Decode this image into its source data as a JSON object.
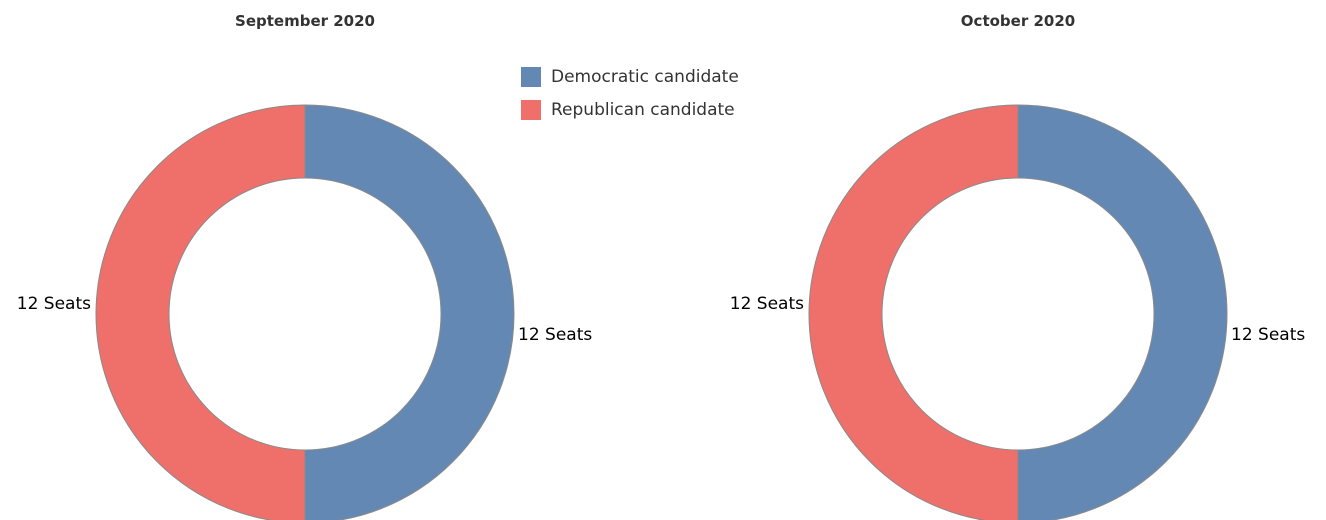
{
  "chart_data": [
    {
      "type": "pie",
      "title": "September 2020",
      "categories": [
        "Democratic candidate",
        "Republican candidate"
      ],
      "values": [
        12,
        12
      ],
      "labels": [
        "12 Seats",
        "12 Seats"
      ],
      "colors": [
        "#6388b4",
        "#ef6f6a"
      ],
      "donut": true
    },
    {
      "type": "pie",
      "title": "October 2020",
      "categories": [
        "Democratic candidate",
        "Republican candidate"
      ],
      "values": [
        12,
        12
      ],
      "labels": [
        "12 Seats",
        "12 Seats"
      ],
      "colors": [
        "#6388b4",
        "#ef6f6a"
      ],
      "donut": true
    }
  ],
  "legend": {
    "items": [
      {
        "label": "Democratic candidate",
        "color": "#6388b4"
      },
      {
        "label": "Republican candidate",
        "color": "#ef6f6a"
      }
    ]
  }
}
